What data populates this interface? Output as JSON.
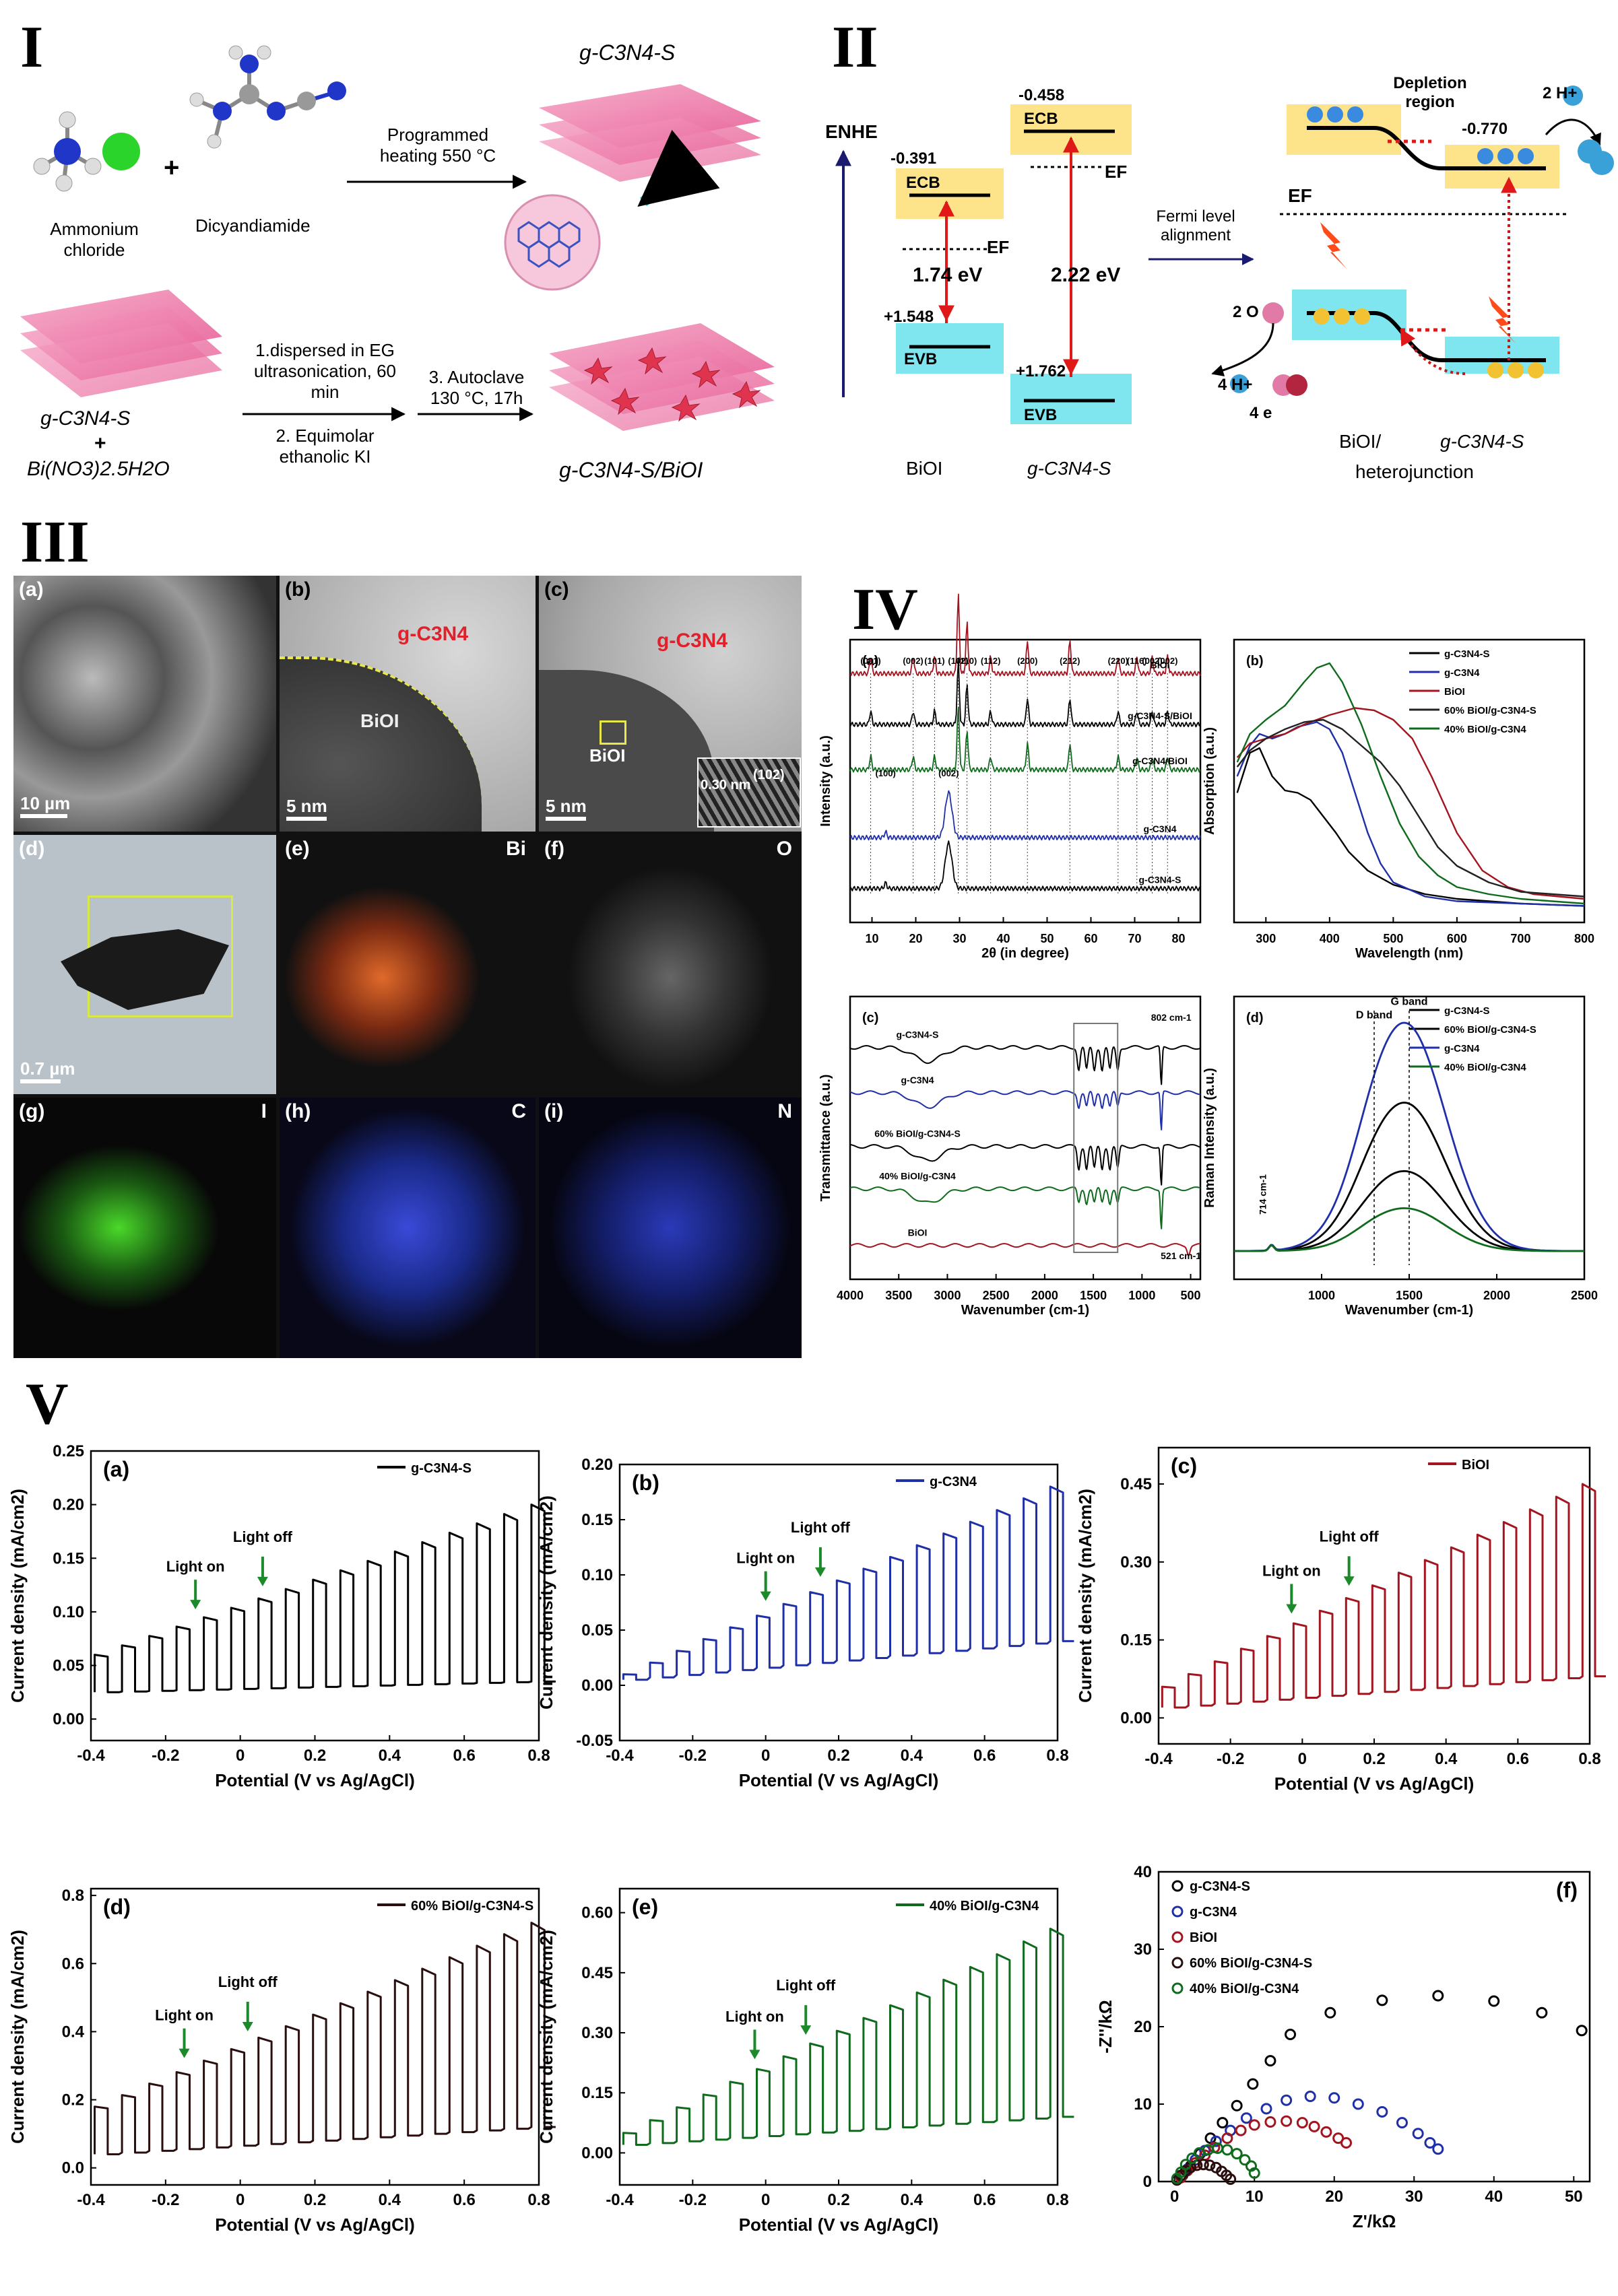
{
  "sections": {
    "I": "I",
    "II": "II",
    "III": "III",
    "IV": "IV",
    "V": "V"
  },
  "scheme": {
    "reagent1": "Ammonium chloride",
    "reagent2": "Dicyandiamide",
    "plus": "+",
    "step1": "Programmed heating 550 °C",
    "product1": "g-C3N4-S",
    "start2a": "g-C3N4-S",
    "start2b": "+",
    "start2c": "Bi(NO3)2.5H2O",
    "step2a": "1.dispersed in EG ultrasonication, 60 min",
    "step2b": "2. Equimolar ethanolic KI",
    "step3": "3. Autoclave 130 °C, 17h",
    "product2": "g-C3N4-S/BiOI"
  },
  "band": {
    "axis": "ENHE",
    "biOI_cb": "-0.391",
    "biOI_vb": "+1.548",
    "biOI_gap": "1.74 eV",
    "gcn_cb": "-0.458",
    "gcn_vb": "+1.762",
    "gcn_gap": "2.22 eV",
    "ecb": "ECB",
    "evb": "EVB",
    "ef": "EF",
    "biOI": "BiOI",
    "gcn": "g-C3N4-S",
    "fermi": "Fermi level alignment",
    "depletion": "Depletion region",
    "dep_val": "-0.770",
    "h2": "2 H+",
    "h2o": "2 O",
    "oh": "4 H+",
    "e4": "4 e",
    "hetero1": "BiOI/",
    "hetero2": "g-C3N4-S",
    "hetero3": "heterojunction"
  },
  "micro": {
    "a": "(a)",
    "a_scale": "10 µm",
    "b": "(b)",
    "b_scale": "5 nm",
    "b_gcn": "g-C3N4",
    "b_bioi": "BiOI",
    "c": "(c)",
    "c_scale": "5 nm",
    "c_gcn": "g-C3N4",
    "c_bioi": "BiOI",
    "c_d": "0.30 nm",
    "c_hkl": "(102)",
    "d": "(d)",
    "d_scale": "0.7 µm",
    "e": "(e)",
    "e_el": "Bi",
    "f": "(f)",
    "f_el": "O",
    "g": "(g)",
    "g_el": "I",
    "h": "(h)",
    "h_el": "C",
    "i": "(i)",
    "i_el": "N"
  },
  "colors": {
    "black": "#000000",
    "blue": "#1f2fa8",
    "red": "#a3141f",
    "green": "#0f6b1c",
    "dark": "#2a0d0d"
  },
  "chart_data": [
    {
      "id": "IVa",
      "type": "line",
      "panel": "(a)",
      "xlabel": "2θ (in degree)",
      "ylabel": "Intensity (a.u.)",
      "xlim": [
        5,
        85
      ],
      "xticks": [
        10,
        20,
        30,
        40,
        50,
        60,
        70,
        80
      ],
      "series": [
        {
          "name": "BiOI",
          "color": "#a3141f"
        },
        {
          "name": "g-C3N4-S/BiOI",
          "color": "#000000"
        },
        {
          "name": "g-C3N4/BiOI",
          "color": "#0f6b1c"
        },
        {
          "name": "g-C3N4",
          "color": "#1f2fa8"
        },
        {
          "name": "g-C3N4-S",
          "color": "#000000"
        }
      ],
      "peaks": [
        {
          "x": 9.7,
          "label": "(001)"
        },
        {
          "x": 19.4,
          "label": "(002)"
        },
        {
          "x": 24.3,
          "label": "(101)"
        },
        {
          "x": 29.7,
          "label": "(102)"
        },
        {
          "x": 31.7,
          "label": "(110)"
        },
        {
          "x": 37.1,
          "label": "(112)"
        },
        {
          "x": 45.5,
          "label": "(200)"
        },
        {
          "x": 55.2,
          "label": "(212)"
        },
        {
          "x": 66.2,
          "label": "(220)"
        },
        {
          "x": 70.5,
          "label": "(116)"
        },
        {
          "x": 74.0,
          "label": "(002)"
        },
        {
          "x": 77.5,
          "label": "(002)"
        }
      ],
      "gcn_peaks": [
        {
          "x": 13.1,
          "label": "(100)"
        },
        {
          "x": 27.5,
          "label": "(002)"
        }
      ]
    },
    {
      "id": "IVb",
      "type": "line",
      "panel": "(b)",
      "xlabel": "Wavelength (nm)",
      "ylabel": "Absorption (a.u.)",
      "xlim": [
        250,
        800
      ],
      "xticks": [
        300,
        400,
        500,
        600,
        700,
        800
      ],
      "series": [
        {
          "name": "g-C3N4-S",
          "color": "#000000",
          "x": [
            255,
            275,
            290,
            310,
            330,
            350,
            370,
            390,
            410,
            430,
            460,
            500,
            550,
            600,
            650,
            700,
            800
          ],
          "y": [
            0.55,
            0.72,
            0.74,
            0.62,
            0.56,
            0.55,
            0.52,
            0.45,
            0.38,
            0.3,
            0.22,
            0.16,
            0.12,
            0.1,
            0.09,
            0.08,
            0.07
          ]
        },
        {
          "name": "g-C3N4",
          "color": "#1f2fa8",
          "x": [
            255,
            275,
            290,
            310,
            330,
            350,
            380,
            400,
            420,
            440,
            460,
            480,
            500,
            550,
            600,
            700,
            800
          ],
          "y": [
            0.62,
            0.75,
            0.8,
            0.78,
            0.8,
            0.83,
            0.85,
            0.82,
            0.72,
            0.55,
            0.38,
            0.25,
            0.17,
            0.11,
            0.09,
            0.08,
            0.07
          ]
        },
        {
          "name": "BiOI",
          "color": "#a3141f",
          "x": [
            255,
            275,
            300,
            330,
            360,
            400,
            440,
            470,
            500,
            530,
            560,
            600,
            640,
            680,
            720,
            800
          ],
          "y": [
            0.7,
            0.76,
            0.78,
            0.8,
            0.84,
            0.88,
            0.91,
            0.9,
            0.86,
            0.78,
            0.62,
            0.38,
            0.22,
            0.15,
            0.12,
            0.1
          ]
        },
        {
          "name": "60% BiOI/g-C3N4-S",
          "color": "#222222",
          "x": [
            255,
            275,
            300,
            330,
            360,
            390,
            420,
            450,
            480,
            510,
            540,
            570,
            600,
            650,
            700,
            800
          ],
          "y": [
            0.66,
            0.73,
            0.78,
            0.82,
            0.85,
            0.86,
            0.82,
            0.75,
            0.68,
            0.58,
            0.45,
            0.32,
            0.24,
            0.17,
            0.13,
            0.11
          ]
        },
        {
          "name": "40% BiOI/g-C3N4",
          "color": "#0f6b1c",
          "x": [
            255,
            275,
            300,
            330,
            360,
            380,
            400,
            420,
            450,
            480,
            510,
            540,
            570,
            600,
            650,
            700,
            800
          ],
          "y": [
            0.68,
            0.8,
            0.86,
            0.92,
            1.02,
            1.08,
            1.1,
            1.02,
            0.84,
            0.62,
            0.42,
            0.28,
            0.2,
            0.15,
            0.12,
            0.1,
            0.08
          ]
        }
      ]
    },
    {
      "id": "IVc",
      "type": "line",
      "panel": "(c)",
      "xlabel": "Wavenumber (cm-1)",
      "ylabel": "Transmittance (a.u.)",
      "xlim": [
        4000,
        400
      ],
      "xticks": [
        4000,
        3500,
        3000,
        2500,
        2000,
        1500,
        1000,
        500
      ],
      "annotations": [
        "802 cm-1",
        "521 cm-1"
      ],
      "series": [
        {
          "name": "g-C3N4-S",
          "color": "#000000"
        },
        {
          "name": "g-C3N4",
          "color": "#1f2fa8"
        },
        {
          "name": "60% BiOI/g-C3N4-S",
          "color": "#000000"
        },
        {
          "name": "40% BiOI/g-C3N4",
          "color": "#0f6b1c"
        },
        {
          "name": "BiOI",
          "color": "#a3141f"
        }
      ]
    },
    {
      "id": "IVd",
      "type": "line",
      "panel": "(d)",
      "xlabel": "Wavenumber (cm-1)",
      "ylabel": "Raman Intensity (a.u.)",
      "xlim": [
        500,
        2500
      ],
      "xticks": [
        1000,
        1500,
        2000,
        2500
      ],
      "annotations": [
        "D band",
        "G band",
        "714 cm-1"
      ],
      "series": [
        {
          "name": "g-C3N4-S",
          "color": "#000000",
          "amp": 0.28
        },
        {
          "name": "60% BiOI/g-C3N4-S",
          "color": "#000000",
          "amp": 0.52
        },
        {
          "name": "g-C3N4",
          "color": "#1f2fa8",
          "amp": 0.8
        },
        {
          "name": "40% BiOI/g-C3N4",
          "color": "#0f6b1c",
          "amp": 0.15
        }
      ]
    },
    {
      "id": "Va",
      "type": "line",
      "panel": "(a)",
      "legend": "g-C3N4-S",
      "color": "#000000",
      "xlabel": "Potential (V vs Ag/AgCl)",
      "ylabel": "Current density (mA/cm2)",
      "xlim": [
        -0.4,
        0.8
      ],
      "ylim": [
        -0.02,
        0.25
      ],
      "xticks": [
        -0.4,
        -0.2,
        0,
        0.2,
        0.4,
        0.6,
        0.8
      ],
      "yticks": [
        0,
        0.05,
        0.1,
        0.15,
        0.2,
        0.25
      ],
      "yfmt": 2,
      "base": [
        0.025,
        0.035
      ],
      "peak": [
        0.06,
        0.2
      ],
      "lighton": -0.12,
      "lightoff": 0.06
    },
    {
      "id": "Vb",
      "type": "line",
      "panel": "(b)",
      "legend": "g-C3N4",
      "color": "#1f2fa8",
      "xlabel": "Potential (V vs Ag/AgCl)",
      "ylabel": "Current density (mA/cm2)",
      "xlim": [
        -0.4,
        0.8
      ],
      "ylim": [
        -0.05,
        0.2
      ],
      "xticks": [
        -0.4,
        -0.2,
        0,
        0.2,
        0.4,
        0.6,
        0.8
      ],
      "yticks": [
        -0.05,
        0,
        0.05,
        0.1,
        0.15,
        0.2
      ],
      "yfmt": 2,
      "base": [
        0.005,
        0.04
      ],
      "peak": [
        0.01,
        0.18
      ],
      "lighton": 0.0,
      "lightoff": 0.15
    },
    {
      "id": "Vc",
      "type": "line",
      "panel": "(c)",
      "legend": "BiOI",
      "color": "#a3141f",
      "xlabel": "Potential (V vs Ag/AgCl)",
      "ylabel": "Current density (mA/cm2)",
      "xlim": [
        -0.4,
        0.8
      ],
      "ylim": [
        -0.05,
        0.52
      ],
      "xticks": [
        -0.4,
        -0.2,
        0,
        0.2,
        0.4,
        0.6,
        0.8
      ],
      "yticks": [
        0,
        0.15,
        0.3,
        0.45
      ],
      "yfmt": 2,
      "base": [
        0.02,
        0.08
      ],
      "peak": [
        0.06,
        0.45
      ],
      "lighton": -0.03,
      "lightoff": 0.13
    },
    {
      "id": "Vd",
      "type": "line",
      "panel": "(d)",
      "legend": "60% BiOI/g-C3N4-S",
      "color": "#2a0d0d",
      "xlabel": "Potential (V vs Ag/AgCl)",
      "ylabel": "Current density (mA/cm2)",
      "xlim": [
        -0.4,
        0.8
      ],
      "ylim": [
        -0.05,
        0.82
      ],
      "xticks": [
        -0.4,
        -0.2,
        0,
        0.2,
        0.4,
        0.6,
        0.8
      ],
      "yticks": [
        0,
        0.2,
        0.4,
        0.6,
        0.8
      ],
      "yfmt": 1,
      "base": [
        0.04,
        0.12
      ],
      "peak": [
        0.18,
        0.72
      ],
      "lighton": -0.15,
      "lightoff": 0.02
    },
    {
      "id": "Ve",
      "type": "line",
      "panel": "(e)",
      "legend": "40% BiOI/g-C3N4",
      "color": "#0f6b1c",
      "xlabel": "Potential (V vs Ag/AgCl)",
      "ylabel": "Current density (mA/cm2)",
      "xlim": [
        -0.4,
        0.8
      ],
      "ylim": [
        -0.08,
        0.66
      ],
      "xticks": [
        -0.4,
        -0.2,
        0,
        0.2,
        0.4,
        0.6,
        0.8
      ],
      "yticks": [
        0,
        0.15,
        0.3,
        0.45,
        0.6
      ],
      "yfmt": 2,
      "base": [
        0.02,
        0.09
      ],
      "peak": [
        0.05,
        0.56
      ],
      "lighton": -0.03,
      "lightoff": 0.11
    },
    {
      "id": "Vf",
      "type": "scatter",
      "panel": "(f)",
      "xlabel": "Z'/kΩ",
      "ylabel": "-Z''/kΩ",
      "xlim": [
        -2,
        52
      ],
      "ylim": [
        0,
        40
      ],
      "xticks": [
        0,
        10,
        20,
        30,
        40,
        50
      ],
      "yticks": [
        0,
        10,
        20,
        30,
        40
      ],
      "series": [
        {
          "name": "g-C3N4-S",
          "color": "#000000",
          "x": [
            1,
            2,
            3.2,
            4.5,
            6,
            7.8,
            9.8,
            12,
            14.5,
            19.5,
            26,
            33,
            40,
            46,
            51
          ],
          "y": [
            0.8,
            2,
            3.6,
            5.6,
            7.6,
            9.8,
            12.6,
            15.6,
            19,
            21.8,
            23.4,
            24,
            23.3,
            21.8,
            19.5
          ]
        },
        {
          "name": "g-C3N4",
          "color": "#1f2fa8",
          "x": [
            0.8,
            1.6,
            2.6,
            3.8,
            5.2,
            7,
            9,
            11.5,
            14,
            17,
            20,
            23,
            26,
            28.5,
            30.5,
            32,
            33
          ],
          "y": [
            0.6,
            1.6,
            2.8,
            4,
            5.2,
            6.6,
            8.2,
            9.4,
            10.5,
            11,
            10.8,
            10,
            9,
            7.6,
            6.2,
            5,
            4.2
          ]
        },
        {
          "name": "BiOI",
          "color": "#a3141f",
          "x": [
            0.8,
            1.6,
            2.6,
            3.8,
            5,
            6.6,
            8.3,
            10,
            12,
            14,
            16,
            17.5,
            19,
            20.5,
            21.5
          ],
          "y": [
            0.5,
            1.4,
            2.4,
            3.4,
            4.4,
            5.6,
            6.6,
            7.3,
            7.7,
            7.8,
            7.6,
            7.1,
            6.4,
            5.6,
            5
          ]
        },
        {
          "name": "60% BiOI/g-C3N4-S",
          "color": "#2a0d0d",
          "x": [
            0.3,
            0.8,
            1.4,
            2,
            2.8,
            3.6,
            4.4,
            5.2,
            5.9,
            6.5,
            7
          ],
          "y": [
            0.2,
            0.8,
            1.4,
            1.8,
            2.1,
            2.2,
            2.1,
            1.8,
            1.3,
            0.8,
            0.3
          ]
        },
        {
          "name": "40% BiOI/g-C3N4",
          "color": "#0f6b1c",
          "x": [
            0.3,
            0.8,
            1.4,
            2.2,
            3.1,
            4.2,
            5.4,
            6.6,
            7.8,
            8.8,
            9.6,
            10
          ],
          "y": [
            0.4,
            1.2,
            2.2,
            3,
            3.7,
            4.1,
            4.3,
            4.1,
            3.6,
            2.8,
            2,
            1.1
          ]
        }
      ]
    }
  ],
  "tags": {
    "lighton": "Light on",
    "lightoff": "Light off"
  }
}
